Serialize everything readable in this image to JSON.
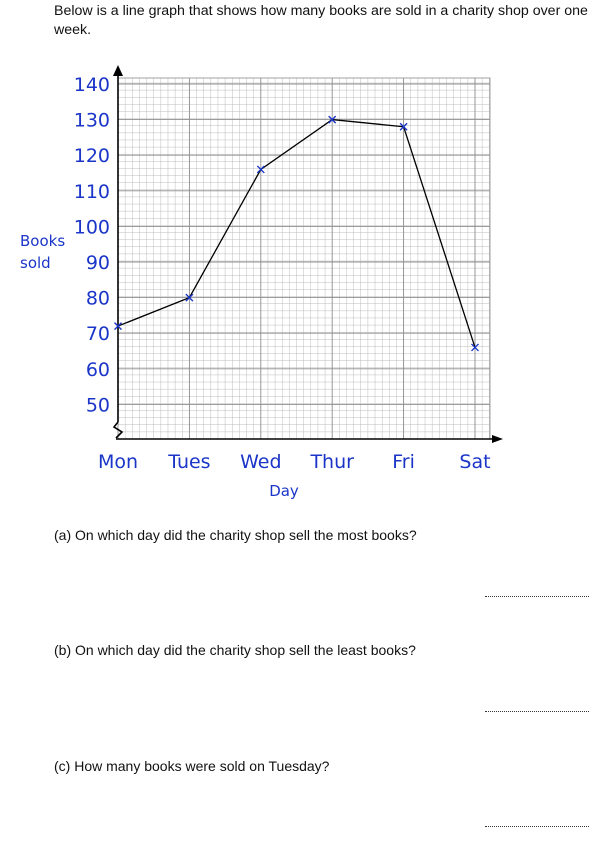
{
  "intro_text": "Below is a line graph that shows how many books are sold in a charity shop over one week.",
  "chart_data": {
    "type": "line",
    "categories": [
      "Mon",
      "Tues",
      "Wed",
      "Thur",
      "Fri",
      "Sat"
    ],
    "series": [
      {
        "values": [
          72,
          80,
          116,
          130,
          128,
          66
        ]
      }
    ],
    "xlabel": "Day",
    "ylabel": "Books sold",
    "ylabel_lines": [
      "Books",
      "sold"
    ],
    "yticks": [
      50,
      60,
      70,
      80,
      90,
      100,
      110,
      120,
      130,
      140
    ],
    "ylim": [
      50,
      140
    ],
    "axis_break": true,
    "grid": true,
    "colors": {
      "line": "#000000",
      "marker": "#1a35c8",
      "labels": "#1a35c8",
      "grid": "#b5b5b5"
    }
  },
  "questions": [
    {
      "label": "(a)  On which day did the charity shop sell the most books?"
    },
    {
      "label": "(b)  On which day did the charity shop sell the least books?"
    },
    {
      "label": "(c)  How many books were sold on Tuesday?"
    }
  ]
}
